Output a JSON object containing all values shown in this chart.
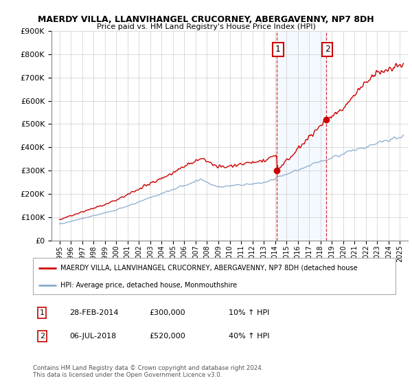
{
  "title_line1": "MAERDY VILLA, LLANVIHANGEL CRUCORNEY, ABERGAVENNY, NP7 8DH",
  "title_line2": "Price paid vs. HM Land Registry's House Price Index (HPI)",
  "legend_label1": "MAERDY VILLA, LLANVIHANGEL CRUCORNEY, ABERGAVENNY, NP7 8DH (detached house",
  "legend_label2": "HPI: Average price, detached house, Monmouthshire",
  "sale1_date": "28-FEB-2014",
  "sale1_price": "£300,000",
  "sale1_hpi": "10% ↑ HPI",
  "sale2_date": "06-JUL-2018",
  "sale2_price": "£520,000",
  "sale2_hpi": "40% ↑ HPI",
  "footer": "Contains HM Land Registry data © Crown copyright and database right 2024.\nThis data is licensed under the Open Government Licence v3.0.",
  "line_color_red": "#cc0000",
  "line_color_blue": "#88aacc",
  "shade_color": "#ddeeff",
  "sale1_x": 2014.17,
  "sale2_x": 2018.5,
  "sale1_y": 300000,
  "sale2_y": 520000,
  "ylim": [
    0,
    900000
  ],
  "xlim_start": 1994.3,
  "xlim_end": 2025.7
}
